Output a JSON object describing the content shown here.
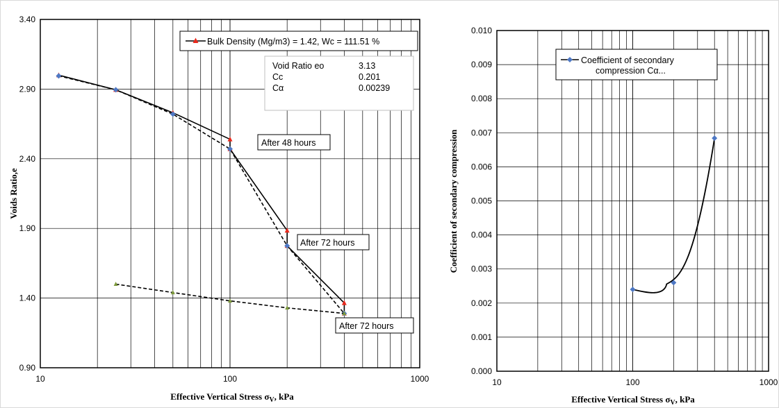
{
  "chart_data": [
    {
      "type": "line",
      "xscale": "log",
      "xlim": [
        10,
        1000
      ],
      "ylim": [
        0.9,
        3.4
      ],
      "xticks": [
        "10",
        "100",
        "1000"
      ],
      "yticks": [
        "0.90",
        "1.40",
        "1.90",
        "2.40",
        "2.90",
        "3.40"
      ],
      "xlabel": "Effective Vertical Stress σ",
      "xlabel_sub": "V",
      "xlabel_tail": ", kPa",
      "ylabel": "Voids Ratio,e",
      "grid": true,
      "legend": {
        "position": "top-right",
        "label": "Bulk Density (Mg/m3) = 1.42, Wc = 111.51 %"
      },
      "info_box": [
        {
          "name": "Void Ratio eo",
          "value": "3.13"
        },
        {
          "name": "Cc",
          "value": "0.201"
        },
        {
          "name": "Cα",
          "value": "0.00239"
        }
      ],
      "series": [
        {
          "name": "Bulk Density (Mg/m3) = 1.42, Wc = 111.51 %",
          "style": "solid",
          "color": "#000000",
          "marker_color": "#e8291c",
          "x": [
            12.5,
            25,
            50,
            100,
            100,
            200,
            200,
            400,
            400
          ],
          "y": [
            3.0,
            2.895,
            2.73,
            2.54,
            2.47,
            1.885,
            1.775,
            1.365,
            1.29
          ]
        },
        {
          "style": "dashed",
          "color": "#000000",
          "marker_color": "#4e78c4",
          "x": [
            12.5,
            25,
            50,
            100,
            200,
            400
          ],
          "y": [
            2.995,
            2.895,
            2.72,
            2.47,
            1.775,
            1.29
          ]
        },
        {
          "style": "dashed",
          "color": "#000000",
          "marker_color": "#7e9a3c",
          "x": [
            25,
            50,
            100,
            200,
            400
          ],
          "y": [
            1.5,
            1.44,
            1.38,
            1.33,
            1.29
          ]
        }
      ],
      "annotations": [
        {
          "text": "After 48 hours",
          "x": 100,
          "y": 2.54
        },
        {
          "text": "After 72 hours",
          "x": 200,
          "y": 1.885
        },
        {
          "text": "After 72 hours",
          "x": 400,
          "y": 1.29
        }
      ]
    },
    {
      "type": "line",
      "xscale": "log",
      "xlim": [
        10,
        1000
      ],
      "ylim": [
        0,
        0.01
      ],
      "xticks": [
        "10",
        "100",
        "1000"
      ],
      "yticks": [
        "0.000",
        "0.001",
        "0.002",
        "0.003",
        "0.004",
        "0.005",
        "0.006",
        "0.007",
        "0.008",
        "0.009",
        "0.010"
      ],
      "xlabel": "Effective Vertical Stress σ",
      "xlabel_sub": "V",
      "xlabel_tail": ", kPa",
      "ylabel": "Coefficient of secondary compression",
      "grid": true,
      "legend": {
        "position": "top-left",
        "label_lines": [
          "Coefficient of secondary",
          "compression Cα..."
        ]
      },
      "series": [
        {
          "name": "Coefficient of secondary compression Cα...",
          "style": "smooth",
          "color": "#000000",
          "marker_color": "#4e78c4",
          "x": [
            100,
            200,
            400
          ],
          "y": [
            0.0024,
            0.0026,
            0.00684
          ]
        }
      ]
    }
  ]
}
